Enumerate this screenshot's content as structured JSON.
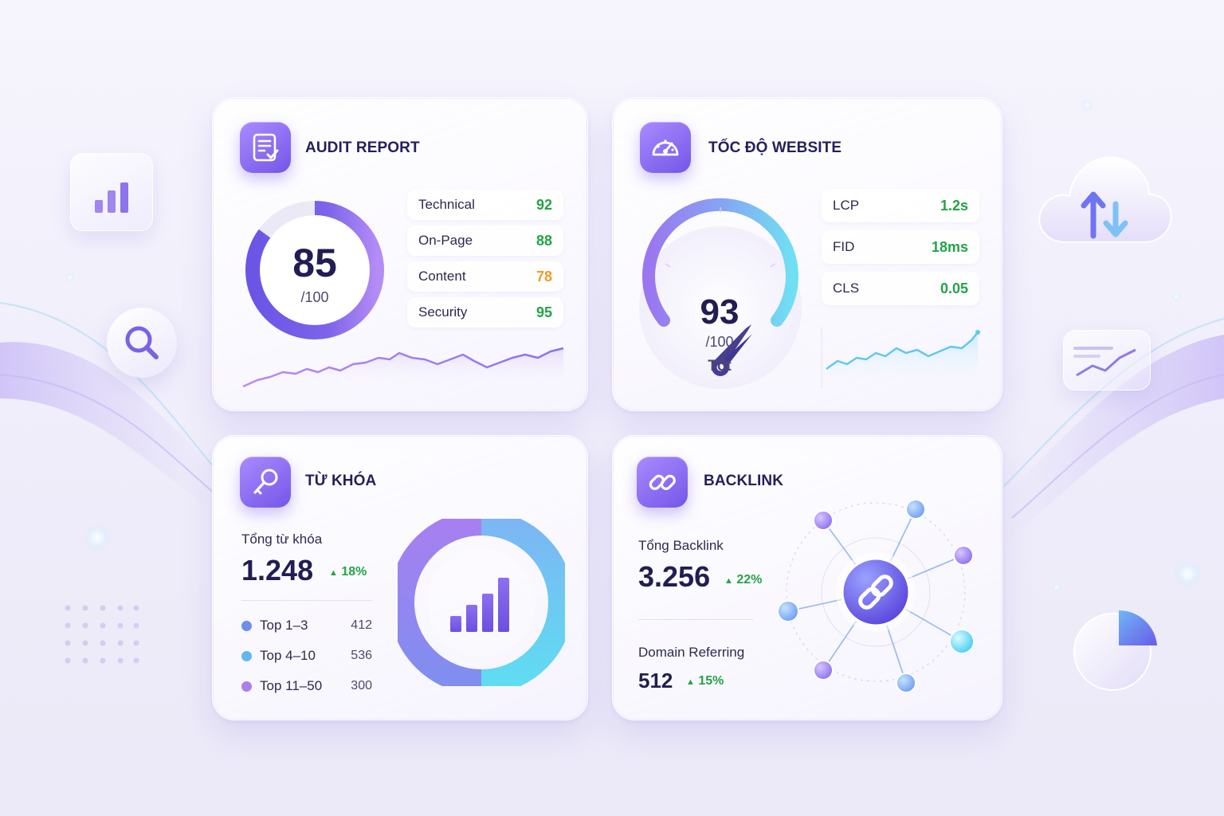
{
  "audit": {
    "title": "AUDIT REPORT",
    "icon": "report-checklist-icon",
    "score": "85",
    "score_max": "/100",
    "score_fraction": 0.85,
    "metrics": [
      {
        "label": "Technical",
        "value": "92",
        "status": "green"
      },
      {
        "label": "On-Page",
        "value": "88",
        "status": "green"
      },
      {
        "label": "Content",
        "value": "78",
        "status": "orange"
      },
      {
        "label": "Security",
        "value": "95",
        "status": "green"
      }
    ]
  },
  "speed": {
    "title": "TỐC ĐỘ WEBSITE",
    "icon": "speedometer-icon",
    "score": "93",
    "score_max": "/100",
    "rating": "Tốt",
    "score_fraction": 0.93,
    "vitals": [
      {
        "label": "LCP",
        "value": "1.2s"
      },
      {
        "label": "FID",
        "value": "18ms"
      },
      {
        "label": "CLS",
        "value": "0.05"
      }
    ]
  },
  "keyword": {
    "title": "TỪ KHÓA",
    "icon": "key-icon",
    "total_label": "Tổng từ khóa",
    "total_value": "1.248",
    "growth": "18%",
    "ranks": [
      {
        "label": "Top 1–3",
        "value": "412",
        "color": "#6f8cf0"
      },
      {
        "label": "Top 4–10",
        "value": "536",
        "color": "#5fb8f2"
      },
      {
        "label": "Top 11–50",
        "value": "300",
        "color": "#a97ff0"
      }
    ]
  },
  "backlink": {
    "title": "BACKLINK",
    "icon": "chain-link-icon",
    "total_label": "Tổng Backlink",
    "total_value": "3.256",
    "growth": "22%",
    "domain_label": "Domain Referring",
    "domain_value": "512",
    "domain_growth": "15%"
  },
  "colors": {
    "accent": "#7456e8",
    "accent_light": "#a98bff",
    "cyan": "#5fd6f2",
    "good": "#22a447",
    "warn": "#f29a25",
    "text_dark": "#221d52"
  }
}
